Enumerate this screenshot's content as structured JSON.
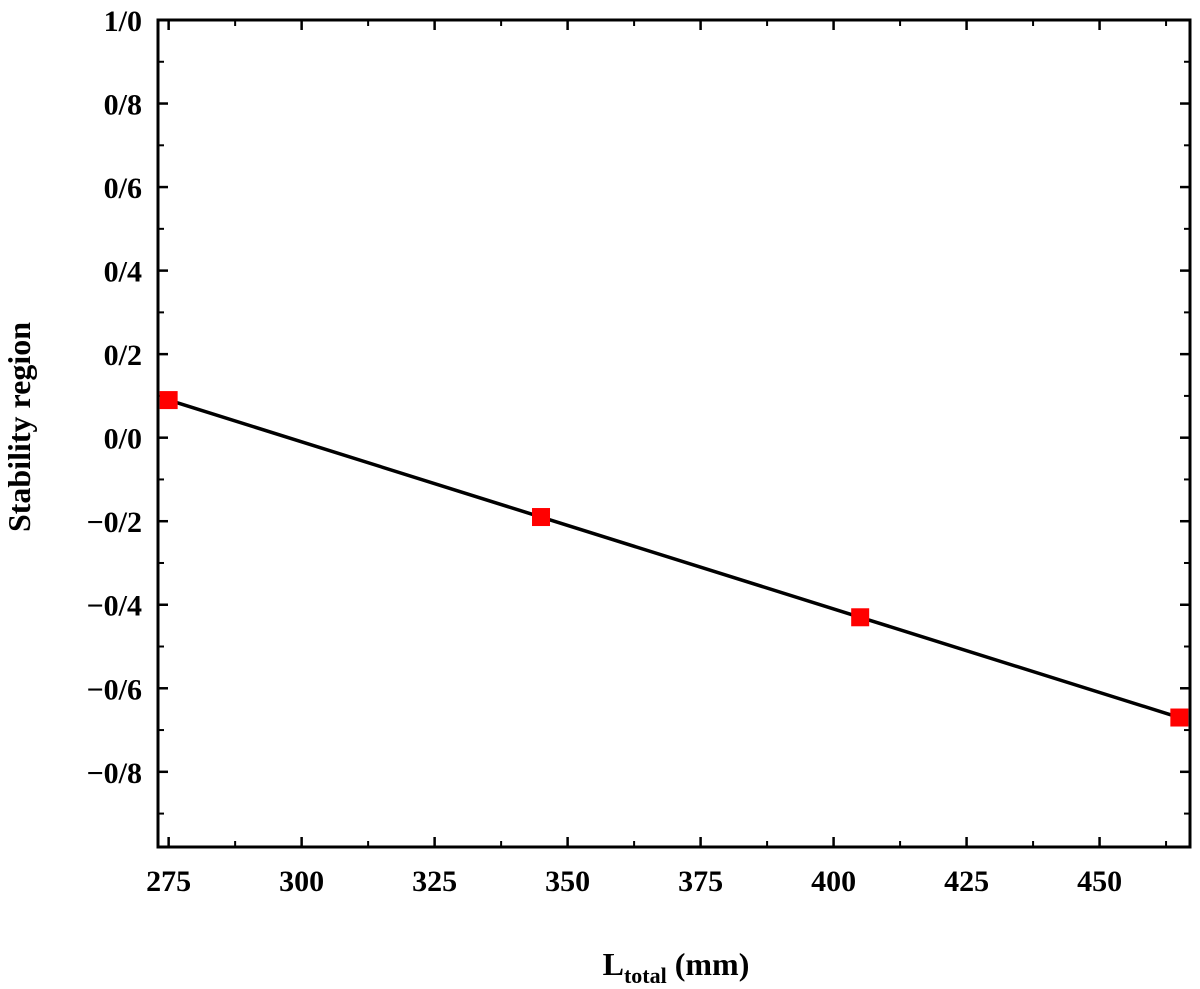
{
  "chart_data": {
    "type": "line",
    "title": "",
    "xlabel": "L",
    "xlabel_subscript": "total",
    "xlabel_unit": " (mm)",
    "ylabel": "Stability region",
    "xlim": [
      273,
      467
    ],
    "ylim": [
      -0.98,
      1.0
    ],
    "x_ticks": [
      275,
      300,
      325,
      350,
      375,
      400,
      425,
      450
    ],
    "x_tick_labels": [
      "275",
      "300",
      "325",
      "350",
      "375",
      "400",
      "425",
      "450"
    ],
    "y_ticks": [
      1.0,
      0.8,
      0.6,
      0.4,
      0.2,
      0.0,
      -0.2,
      -0.4,
      -0.6,
      -0.8
    ],
    "y_tick_labels": [
      "1/0",
      "0/8",
      "0/6",
      "0/4",
      "0/2",
      "0/0",
      "−0/2",
      "−0/4",
      "−0/6",
      "−0/8"
    ],
    "grid": false,
    "series": [
      {
        "x": [
          275,
          345,
          405,
          465
        ],
        "y": [
          0.09,
          -0.19,
          -0.43,
          -0.67
        ],
        "line_color": "#000000",
        "marker": "square",
        "marker_color": "#ff0000"
      }
    ]
  }
}
